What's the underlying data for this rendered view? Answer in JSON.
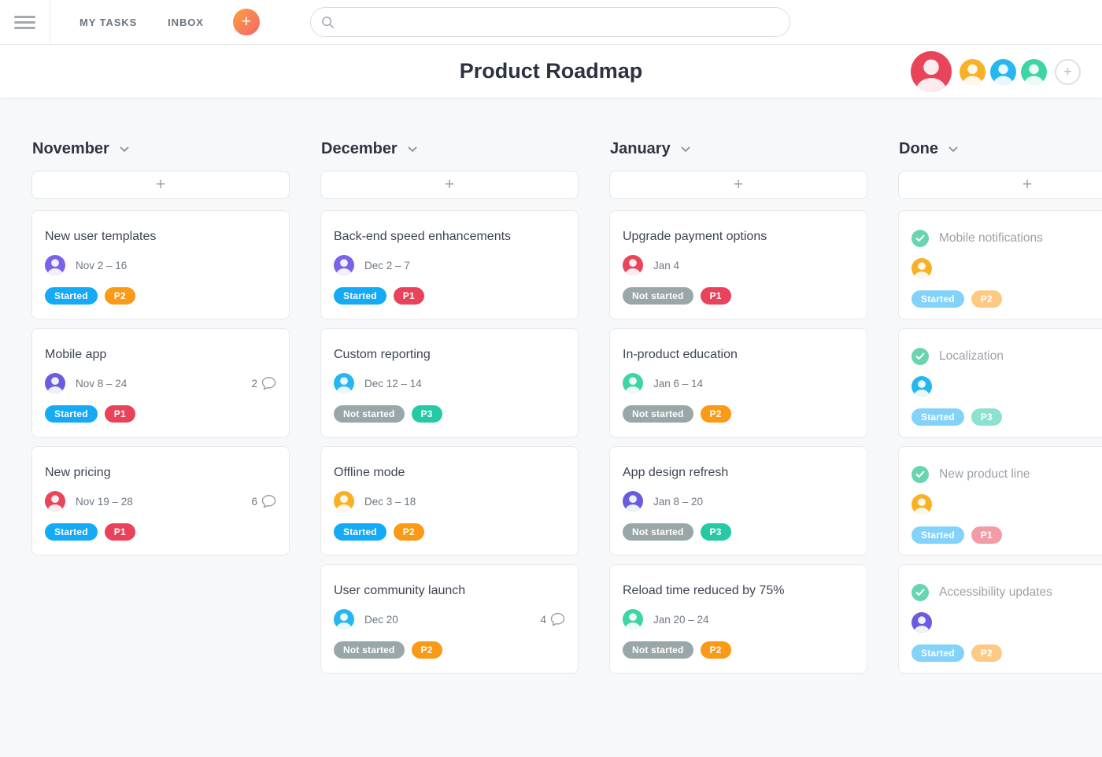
{
  "topbar": {
    "nav": [
      {
        "label": "MY TASKS"
      },
      {
        "label": "INBOX"
      }
    ],
    "quick_add_label": "+",
    "search": {
      "placeholder": "",
      "value": ""
    }
  },
  "header": {
    "title": "Product Roadmap",
    "avatars": [
      {
        "name": "avatar-red",
        "color": "#e8445a",
        "size": "large"
      },
      {
        "name": "avatar-yellow",
        "color": "#f8b125",
        "size": "small"
      },
      {
        "name": "avatar-blue",
        "color": "#27b7f0",
        "size": "small"
      },
      {
        "name": "avatar-green",
        "color": "#3ed5a3",
        "size": "small"
      }
    ],
    "invite_label": "+"
  },
  "palette": {
    "status": {
      "Started": "#14aaf5",
      "Not started": "#99a7a8"
    },
    "priority": {
      "P1": "#e8435a",
      "P2": "#fa9a16",
      "P3": "#25c9a3"
    },
    "done_check": "#69d5af",
    "quick_add_gradient": [
      "#fca03c",
      "#f3656e"
    ]
  },
  "board": {
    "add_card_label": "+",
    "columns": [
      {
        "title": "November",
        "cards": [
          {
            "title": "New user templates",
            "avatar_color": "#7a63e8",
            "date": "Nov 2 – 16",
            "status": "Started",
            "priority": "P2"
          },
          {
            "title": "Mobile app",
            "avatar_color": "#6a5ce0",
            "date": "Nov 8 – 24",
            "comments": "2",
            "status": "Started",
            "priority": "P1"
          },
          {
            "title": "New pricing",
            "avatar_color": "#e8445a",
            "date": "Nov 19 – 28",
            "comments": "6",
            "status": "Started",
            "priority": "P1"
          }
        ]
      },
      {
        "title": "December",
        "cards": [
          {
            "title": "Back-end speed enhancements",
            "avatar_color": "#7a63e8",
            "date": "Dec 2 – 7",
            "status": "Started",
            "priority": "P1"
          },
          {
            "title": "Custom reporting",
            "avatar_color": "#27b7f0",
            "date": "Dec 12 – 14",
            "status": "Not started",
            "priority": "P3"
          },
          {
            "title": "Offline mode",
            "avatar_color": "#f8b125",
            "date": "Dec 3 – 18",
            "status": "Started",
            "priority": "P2"
          },
          {
            "title": "User community launch",
            "avatar_color": "#27b7f0",
            "date": "Dec 20",
            "comments": "4",
            "status": "Not started",
            "priority": "P2"
          }
        ]
      },
      {
        "title": "January",
        "cards": [
          {
            "title": "Upgrade payment options",
            "avatar_color": "#e8445a",
            "date": "Jan 4",
            "status": "Not started",
            "priority": "P1"
          },
          {
            "title": "In-product education",
            "avatar_color": "#3ed5a3",
            "date": "Jan 6 – 14",
            "status": "Not started",
            "priority": "P2"
          },
          {
            "title": "App design refresh",
            "avatar_color": "#6a5ce0",
            "date": "Jan 8 – 20",
            "status": "Not started",
            "priority": "P3"
          },
          {
            "title": "Reload time reduced by 75%",
            "avatar_color": "#3ed5a3",
            "date": "Jan 20 – 24",
            "status": "Not started",
            "priority": "P2"
          }
        ]
      },
      {
        "title": "Done",
        "cards": [
          {
            "title": "Mobile notifications",
            "avatar_color": "#f8b125",
            "done": true,
            "status": "Started",
            "priority": "P2"
          },
          {
            "title": "Localization",
            "avatar_color": "#27b7f0",
            "done": true,
            "status": "Started",
            "priority": "P3"
          },
          {
            "title": "New product line",
            "avatar_color": "#f8b125",
            "done": true,
            "status": "Started",
            "priority": "P1"
          },
          {
            "title": "Accessibility updates",
            "avatar_color": "#6a5ce0",
            "done": true,
            "status": "Started",
            "priority": "P2"
          }
        ]
      }
    ]
  }
}
